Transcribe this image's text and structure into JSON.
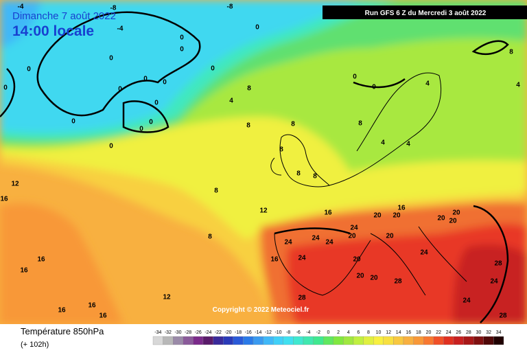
{
  "header": {
    "date": "Dimanche 7 août 2022",
    "time": "14:00 locale",
    "run": "Run GFS 6 Z du Mercredi 3 août 2022"
  },
  "map": {
    "copyright": "Copyright © 2022 Meteociel.fr",
    "contour_labels": [
      -8,
      -8,
      -4,
      -4,
      0,
      0,
      0,
      0,
      0,
      0,
      0,
      0,
      0,
      0,
      0,
      0,
      0,
      0,
      0,
      0,
      0,
      4,
      4,
      4,
      4,
      4,
      8,
      8,
      8,
      8,
      8,
      8,
      8,
      8,
      8,
      8,
      12,
      12,
      12,
      16,
      16,
      16,
      16,
      16,
      16,
      16,
      16,
      16,
      20,
      20,
      20,
      20,
      20,
      20,
      20,
      20,
      20,
      20,
      24,
      24,
      24,
      24,
      24,
      24,
      24,
      24,
      28,
      28,
      28,
      28
    ]
  },
  "legend": {
    "title": "Température 850hPa",
    "subtitle": "(+ 102h)",
    "values": [
      -34,
      -32,
      -30,
      -28,
      -26,
      -24,
      -22,
      -20,
      -18,
      -16,
      -14,
      -12,
      -10,
      -8,
      -6,
      -4,
      -2,
      0,
      2,
      4,
      6,
      8,
      10,
      12,
      14,
      16,
      18,
      20,
      22,
      24,
      26,
      28,
      30,
      32,
      34
    ],
    "colors": [
      "#d8d8d8",
      "#b8b8b8",
      "#9a8aa8",
      "#8a5a9a",
      "#7a2a8a",
      "#5a1a6a",
      "#3a2a9a",
      "#2a3ab8",
      "#2a5ad8",
      "#2a7ae8",
      "#3a9af0",
      "#40b8f8",
      "#40d0f8",
      "#40e0f0",
      "#40e8d0",
      "#40e8b0",
      "#40e890",
      "#60e860",
      "#80e840",
      "#a0e840",
      "#c0f040",
      "#e0f040",
      "#f8f040",
      "#f8e040",
      "#f8c840",
      "#f8b040",
      "#f89838",
      "#f87830",
      "#f05028",
      "#e03020",
      "#c82020",
      "#a81818",
      "#801010",
      "#500808",
      "#200000"
    ]
  }
}
